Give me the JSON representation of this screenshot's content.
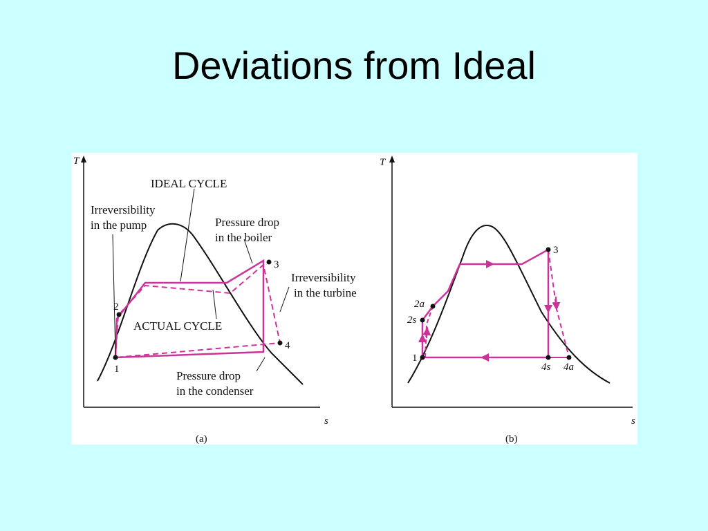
{
  "slide": {
    "title": "Deviations from Ideal"
  },
  "colors": {
    "background": "#ccffff",
    "cycle": "#cc3399",
    "curve": "#111111"
  },
  "panel_a": {
    "y_axis": "T",
    "x_axis": "s",
    "caption": "(a)",
    "labels": {
      "ideal_cycle": "IDEAL CYCLE",
      "actual_cycle": "ACTUAL CYCLE",
      "pump_1": "Irreversibility",
      "pump_2": "in the pump",
      "boiler_1": "Pressure drop",
      "boiler_2": "in the boiler",
      "turbine_1": "Irreversibility",
      "turbine_2": "in the turbine",
      "condenser_1": "Pressure drop",
      "condenser_2": "in the condenser"
    },
    "points": {
      "p1": "1",
      "p2": "2",
      "p3": "3",
      "p4": "4"
    }
  },
  "panel_b": {
    "y_axis": "T",
    "x_axis": "s",
    "caption": "(b)",
    "points": {
      "p1": "1",
      "p2a": "2a",
      "p2s": "2s",
      "p3": "3",
      "p4s": "4s",
      "p4a": "4a"
    }
  }
}
